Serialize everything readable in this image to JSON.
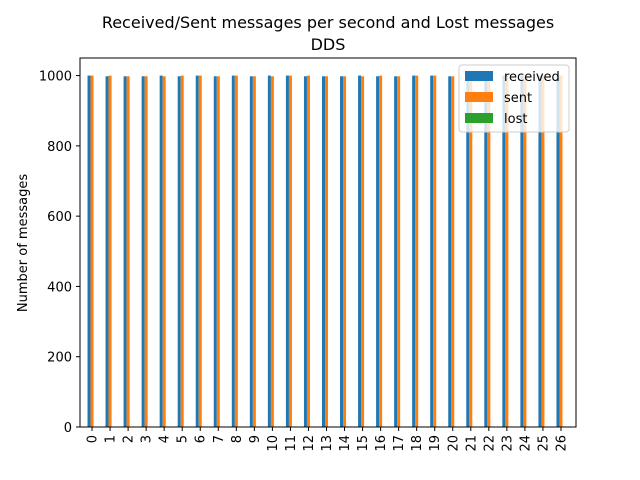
{
  "chart_data": {
    "type": "bar",
    "title": "Received/Sent messages per second and Lost messages",
    "subtitle": "DDS",
    "xlabel": "",
    "ylabel": "Number of messages",
    "ylim": [
      0,
      1050
    ],
    "yticks": [
      0,
      200,
      400,
      600,
      800,
      1000
    ],
    "categories": [
      "0",
      "1",
      "2",
      "3",
      "4",
      "5",
      "6",
      "7",
      "8",
      "9",
      "10",
      "11",
      "12",
      "13",
      "14",
      "15",
      "16",
      "17",
      "18",
      "19",
      "20",
      "21",
      "22",
      "23",
      "24",
      "25",
      "26"
    ],
    "series": [
      {
        "name": "received",
        "color": "#1f77b4",
        "values": [
          1000,
          998,
          998,
          998,
          1000,
          998,
          1000,
          998,
          1000,
          998,
          1000,
          1000,
          998,
          998,
          998,
          1000,
          998,
          998,
          1000,
          1000,
          998,
          1000,
          1000,
          1000,
          1000,
          1000,
          1000
        ]
      },
      {
        "name": "sent",
        "color": "#ff7f0e",
        "values": [
          1000,
          1000,
          998,
          998,
          998,
          1000,
          1000,
          998,
          1000,
          998,
          998,
          1000,
          1000,
          998,
          998,
          998,
          1000,
          998,
          1000,
          1000,
          998,
          1000,
          1000,
          1000,
          1000,
          1000,
          1000
        ]
      },
      {
        "name": "lost",
        "color": "#2ca02c",
        "values": [
          0,
          0,
          0,
          0,
          0,
          0,
          0,
          0,
          0,
          0,
          0,
          0,
          0,
          0,
          0,
          0,
          0,
          0,
          0,
          0,
          0,
          0,
          0,
          0,
          0,
          0,
          0
        ]
      }
    ],
    "grid": false,
    "legend": "top-right"
  }
}
